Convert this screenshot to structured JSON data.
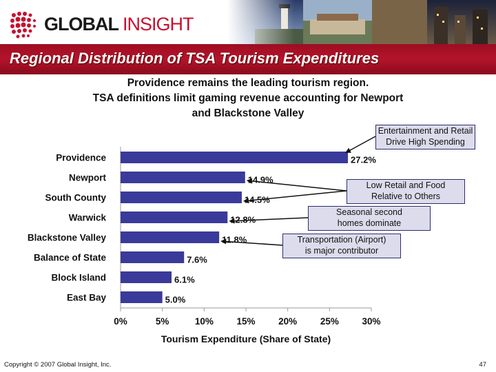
{
  "logo": {
    "part1": "GLOBAL",
    "part2": "INSIGHT"
  },
  "slide_title": "Regional Distribution of TSA Tourism Expenditures",
  "subtitle_lines": [
    "Providence remains the leading tourism region.",
    "TSA definitions limit gaming revenue accounting for Newport",
    "and Blackstone Valley"
  ],
  "callouts": [
    {
      "lines": [
        "Entertainment and Retail",
        "Drive High Spending"
      ]
    },
    {
      "lines": [
        "Low Retail and Food",
        "Relative to Others"
      ]
    },
    {
      "lines": [
        "Seasonal second",
        "homes dominate"
      ]
    },
    {
      "lines": [
        "Transportation (Airport)",
        "is major contributor"
      ]
    }
  ],
  "chart_data": {
    "type": "bar",
    "orientation": "horizontal",
    "categories": [
      "Providence",
      "Newport",
      "South County",
      "Warwick",
      "Blackstone Valley",
      "Balance of State",
      "Block Island",
      "East Bay"
    ],
    "values": [
      27.2,
      14.9,
      14.5,
      12.8,
      11.8,
      7.6,
      6.1,
      5.0
    ],
    "data_labels": [
      "27.2%",
      "14.9%",
      "14.5%",
      "12.8%",
      "11.8%",
      "7.6%",
      "6.1%",
      "5.0%"
    ],
    "xlim": [
      0,
      30
    ],
    "xticks": [
      0,
      5,
      10,
      15,
      20,
      25,
      30
    ],
    "xtick_labels": [
      "0%",
      "5%",
      "10%",
      "15%",
      "20%",
      "25%",
      "30%"
    ],
    "xlabel": "Tourism Expenditure (Share of State)",
    "bar_color": "#3a3a9a",
    "grid": false
  },
  "footer": {
    "copyright": "Copyright © 2007 Global Insight, Inc.",
    "page_number": "47"
  }
}
